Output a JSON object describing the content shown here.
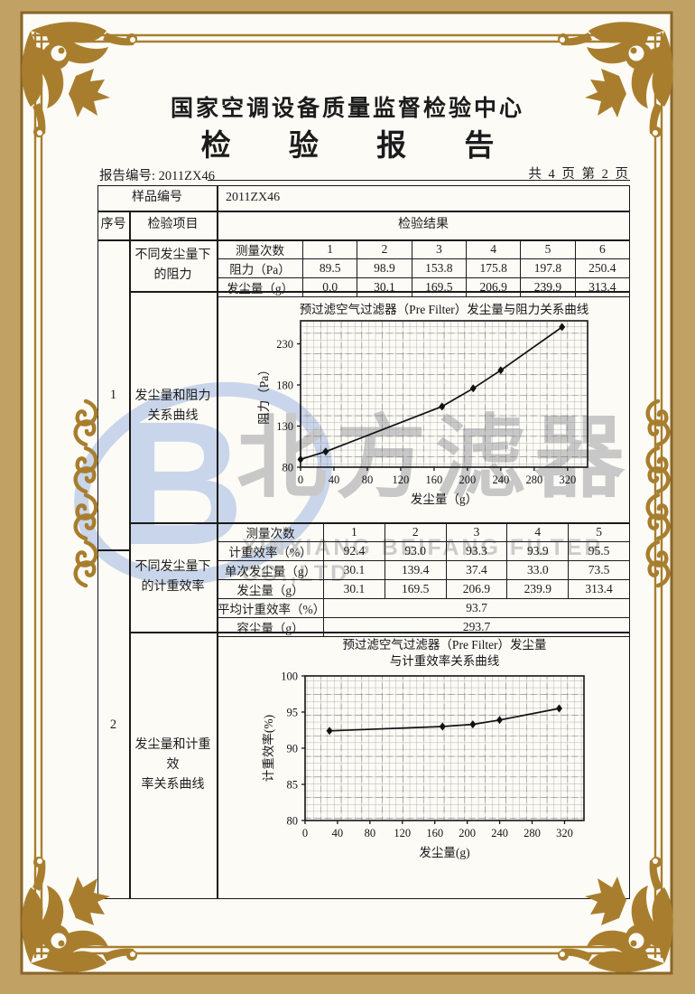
{
  "header": {
    "center_name": "国家空调设备质量监督检验中心",
    "report_title": "检 验 报 告",
    "report_no_label": "报告编号:",
    "report_no": "2011ZX46",
    "pagination": "共 4 页 第 2 页"
  },
  "table": {
    "sample_no_label": "样品编号",
    "sample_no_value": "2011ZX46",
    "seq_header": "序号",
    "item_header": "检验项目",
    "result_header": "检验结果",
    "sections": [
      {
        "seq": "1",
        "items": [
          [
            "不同发尘量下",
            "的阻力"
          ],
          [
            "发尘量和阻力",
            "关系曲线"
          ]
        ]
      },
      {
        "seq": "2",
        "items": [
          [
            "不同发尘量下",
            "的计重效率"
          ],
          [
            "发尘量和计重效",
            "率关系曲线"
          ]
        ]
      }
    ]
  },
  "resistance_table": {
    "header_label": "测量次数",
    "columns": [
      "1",
      "2",
      "3",
      "4",
      "5",
      "6"
    ],
    "rows": [
      {
        "label": "阻力（Pa）",
        "values": [
          "89.5",
          "98.9",
          "153.8",
          "175.8",
          "197.8",
          "250.4"
        ]
      },
      {
        "label": "发尘量（g）",
        "values": [
          "0.0",
          "30.1",
          "169.5",
          "206.9",
          "239.9",
          "313.4"
        ]
      }
    ]
  },
  "efficiency_table": {
    "header_label": "测量次数",
    "columns": [
      "1",
      "2",
      "3",
      "4",
      "5"
    ],
    "rows": [
      {
        "label": "计重效率（%）",
        "values": [
          "92.4",
          "93.0",
          "93.3",
          "93.9",
          "95.5"
        ]
      },
      {
        "label": "单次发尘量（g）",
        "values": [
          "30.1",
          "139.4",
          "37.4",
          "33.0",
          "73.5"
        ]
      },
      {
        "label": "发尘量（g）",
        "values": [
          "30.1",
          "169.5",
          "206.9",
          "239.9",
          "313.4"
        ]
      }
    ],
    "span_rows": [
      {
        "label": "平均计重效率（%）",
        "value": "93.7"
      },
      {
        "label": "容尘量（g）",
        "value": "293.7"
      }
    ]
  },
  "chart_data": [
    {
      "type": "line",
      "title": "预过滤空气过滤器（Pre Filter）发尘量与阻力关系曲线",
      "title_lines": [
        "预过滤空气过滤器（Pre Filter）发尘量与阻力关系曲线"
      ],
      "xlabel": "发尘量（g）",
      "ylabel": "阻力（Pa）",
      "x": [
        0,
        30.1,
        169.5,
        206.9,
        239.9,
        313.4
      ],
      "y": [
        89.5,
        98.9,
        153.8,
        175.8,
        197.8,
        250.4
      ],
      "xlim": [
        0,
        344
      ],
      "ylim": [
        80,
        258
      ],
      "xticks": [
        0,
        40,
        80,
        120,
        160,
        200,
        240,
        280,
        320
      ],
      "yticks": [
        80,
        130,
        180,
        230
      ],
      "grid": true,
      "marker": "diamond",
      "legend": "none"
    },
    {
      "type": "line",
      "title": "预过滤空气过滤器（Pre Filter）发尘量 与计重效率关系曲线",
      "title_lines": [
        "预过滤空气过滤器（Pre Filter）发尘量",
        "与计重效率关系曲线"
      ],
      "xlabel": "发尘量(g)",
      "ylabel": "计重效率(%)",
      "x": [
        30.1,
        169.5,
        206.9,
        239.9,
        313.4
      ],
      "y": [
        92.4,
        93.0,
        93.3,
        93.9,
        95.5
      ],
      "xlim": [
        0,
        344
      ],
      "ylim": [
        80,
        100
      ],
      "xticks": [
        0,
        40,
        80,
        120,
        160,
        200,
        240,
        280,
        320
      ],
      "yticks": [
        80,
        85,
        90,
        95,
        100
      ],
      "grid": true,
      "marker": "diamond",
      "legend": "none"
    }
  ],
  "watermark": {
    "logo_letter": "B",
    "company_cn": "北方滤器",
    "company_en": "XINXIANG BEIFANG FILTER CO.,LTD",
    "logo_color": "#c9d5ea",
    "text_color": "#c8c8c8"
  },
  "colors": {
    "frame_gold": "#a87e2e",
    "frame_tan": "#c1a164",
    "ink": "#1c1c1c"
  }
}
